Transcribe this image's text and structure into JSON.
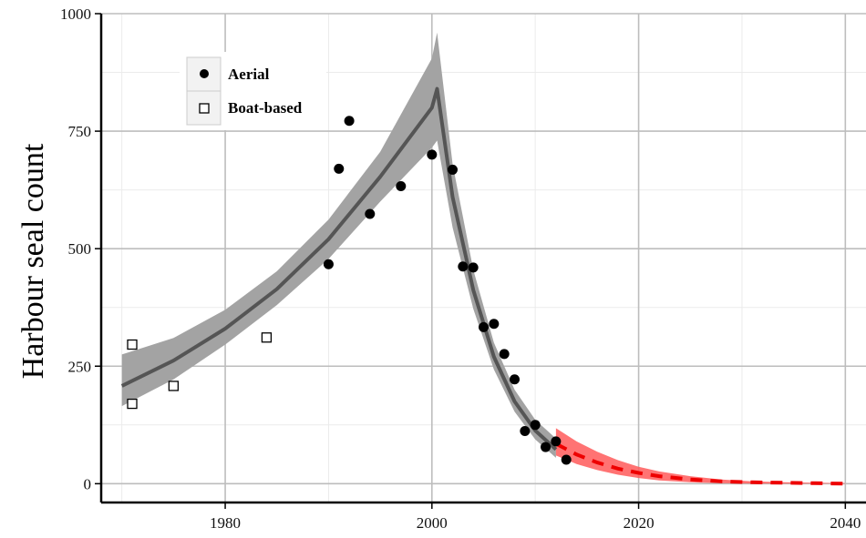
{
  "chart_data": {
    "type": "scatter",
    "title": "",
    "xlabel": "",
    "ylabel": "Harbour seal count",
    "xlim": [
      1968,
      2042
    ],
    "ylim": [
      -40,
      1000
    ],
    "x_ticks": [
      1980,
      2000,
      2020,
      2040
    ],
    "y_ticks": [
      0,
      250,
      500,
      750,
      1000
    ],
    "grid": true,
    "legend_position": "top-left",
    "legend": [
      {
        "name": "Aerial",
        "marker": "filled-circle"
      },
      {
        "name": "Boat-based",
        "marker": "open-square"
      }
    ],
    "series": [
      {
        "name": "Aerial",
        "kind": "points",
        "marker": "filled-circle",
        "color": "#000000",
        "x": [
          1990,
          1991,
          1992,
          1994,
          1997,
          2000,
          2002,
          2003,
          2004,
          2005,
          2006,
          2007,
          2008,
          2009,
          2010,
          2011,
          2012,
          2013
        ],
        "y": [
          467,
          670,
          772,
          574,
          633,
          700,
          668,
          462,
          460,
          333,
          340,
          276,
          222,
          112,
          125,
          78,
          90,
          51
        ]
      },
      {
        "name": "Boat-based",
        "kind": "points",
        "marker": "open-square",
        "color": "#000000",
        "x": [
          1971,
          1971,
          1975,
          1984
        ],
        "y": [
          296,
          170,
          208,
          311
        ]
      },
      {
        "kind": "line",
        "color": "#555555",
        "band_color": "#a3a3a3",
        "x": [
          1970,
          1975,
          1980,
          1985,
          1990,
          1995,
          2000,
          2000.5,
          2002,
          2004,
          2006,
          2008,
          2010,
          2012
        ],
        "y": [
          208,
          262,
          330,
          414,
          520,
          653,
          800,
          840,
          610,
          412,
          270,
          175,
          113,
          73
        ],
        "y_lower": [
          165,
          222,
          296,
          380,
          478,
          600,
          715,
          730,
          545,
          372,
          243,
          153,
          94,
          55
        ],
        "y_upper": [
          275,
          310,
          370,
          452,
          562,
          706,
          905,
          960,
          680,
          455,
          300,
          200,
          136,
          96
        ]
      },
      {
        "kind": "projection",
        "color": "#ee0000",
        "band_color": "#ff5a5a",
        "x": [
          2012,
          2014,
          2016,
          2018,
          2020,
          2022,
          2025,
          2028,
          2031,
          2034,
          2037,
          2040
        ],
        "y": [
          85,
          62,
          45,
          32,
          23,
          16,
          9,
          5,
          3,
          2,
          1,
          0
        ],
        "y_lower": [
          60,
          42,
          29,
          19,
          12,
          7,
          3,
          1,
          0,
          0,
          0,
          0
        ],
        "y_upper": [
          118,
          90,
          68,
          50,
          36,
          26,
          16,
          9,
          5,
          3,
          2,
          1
        ]
      }
    ]
  }
}
